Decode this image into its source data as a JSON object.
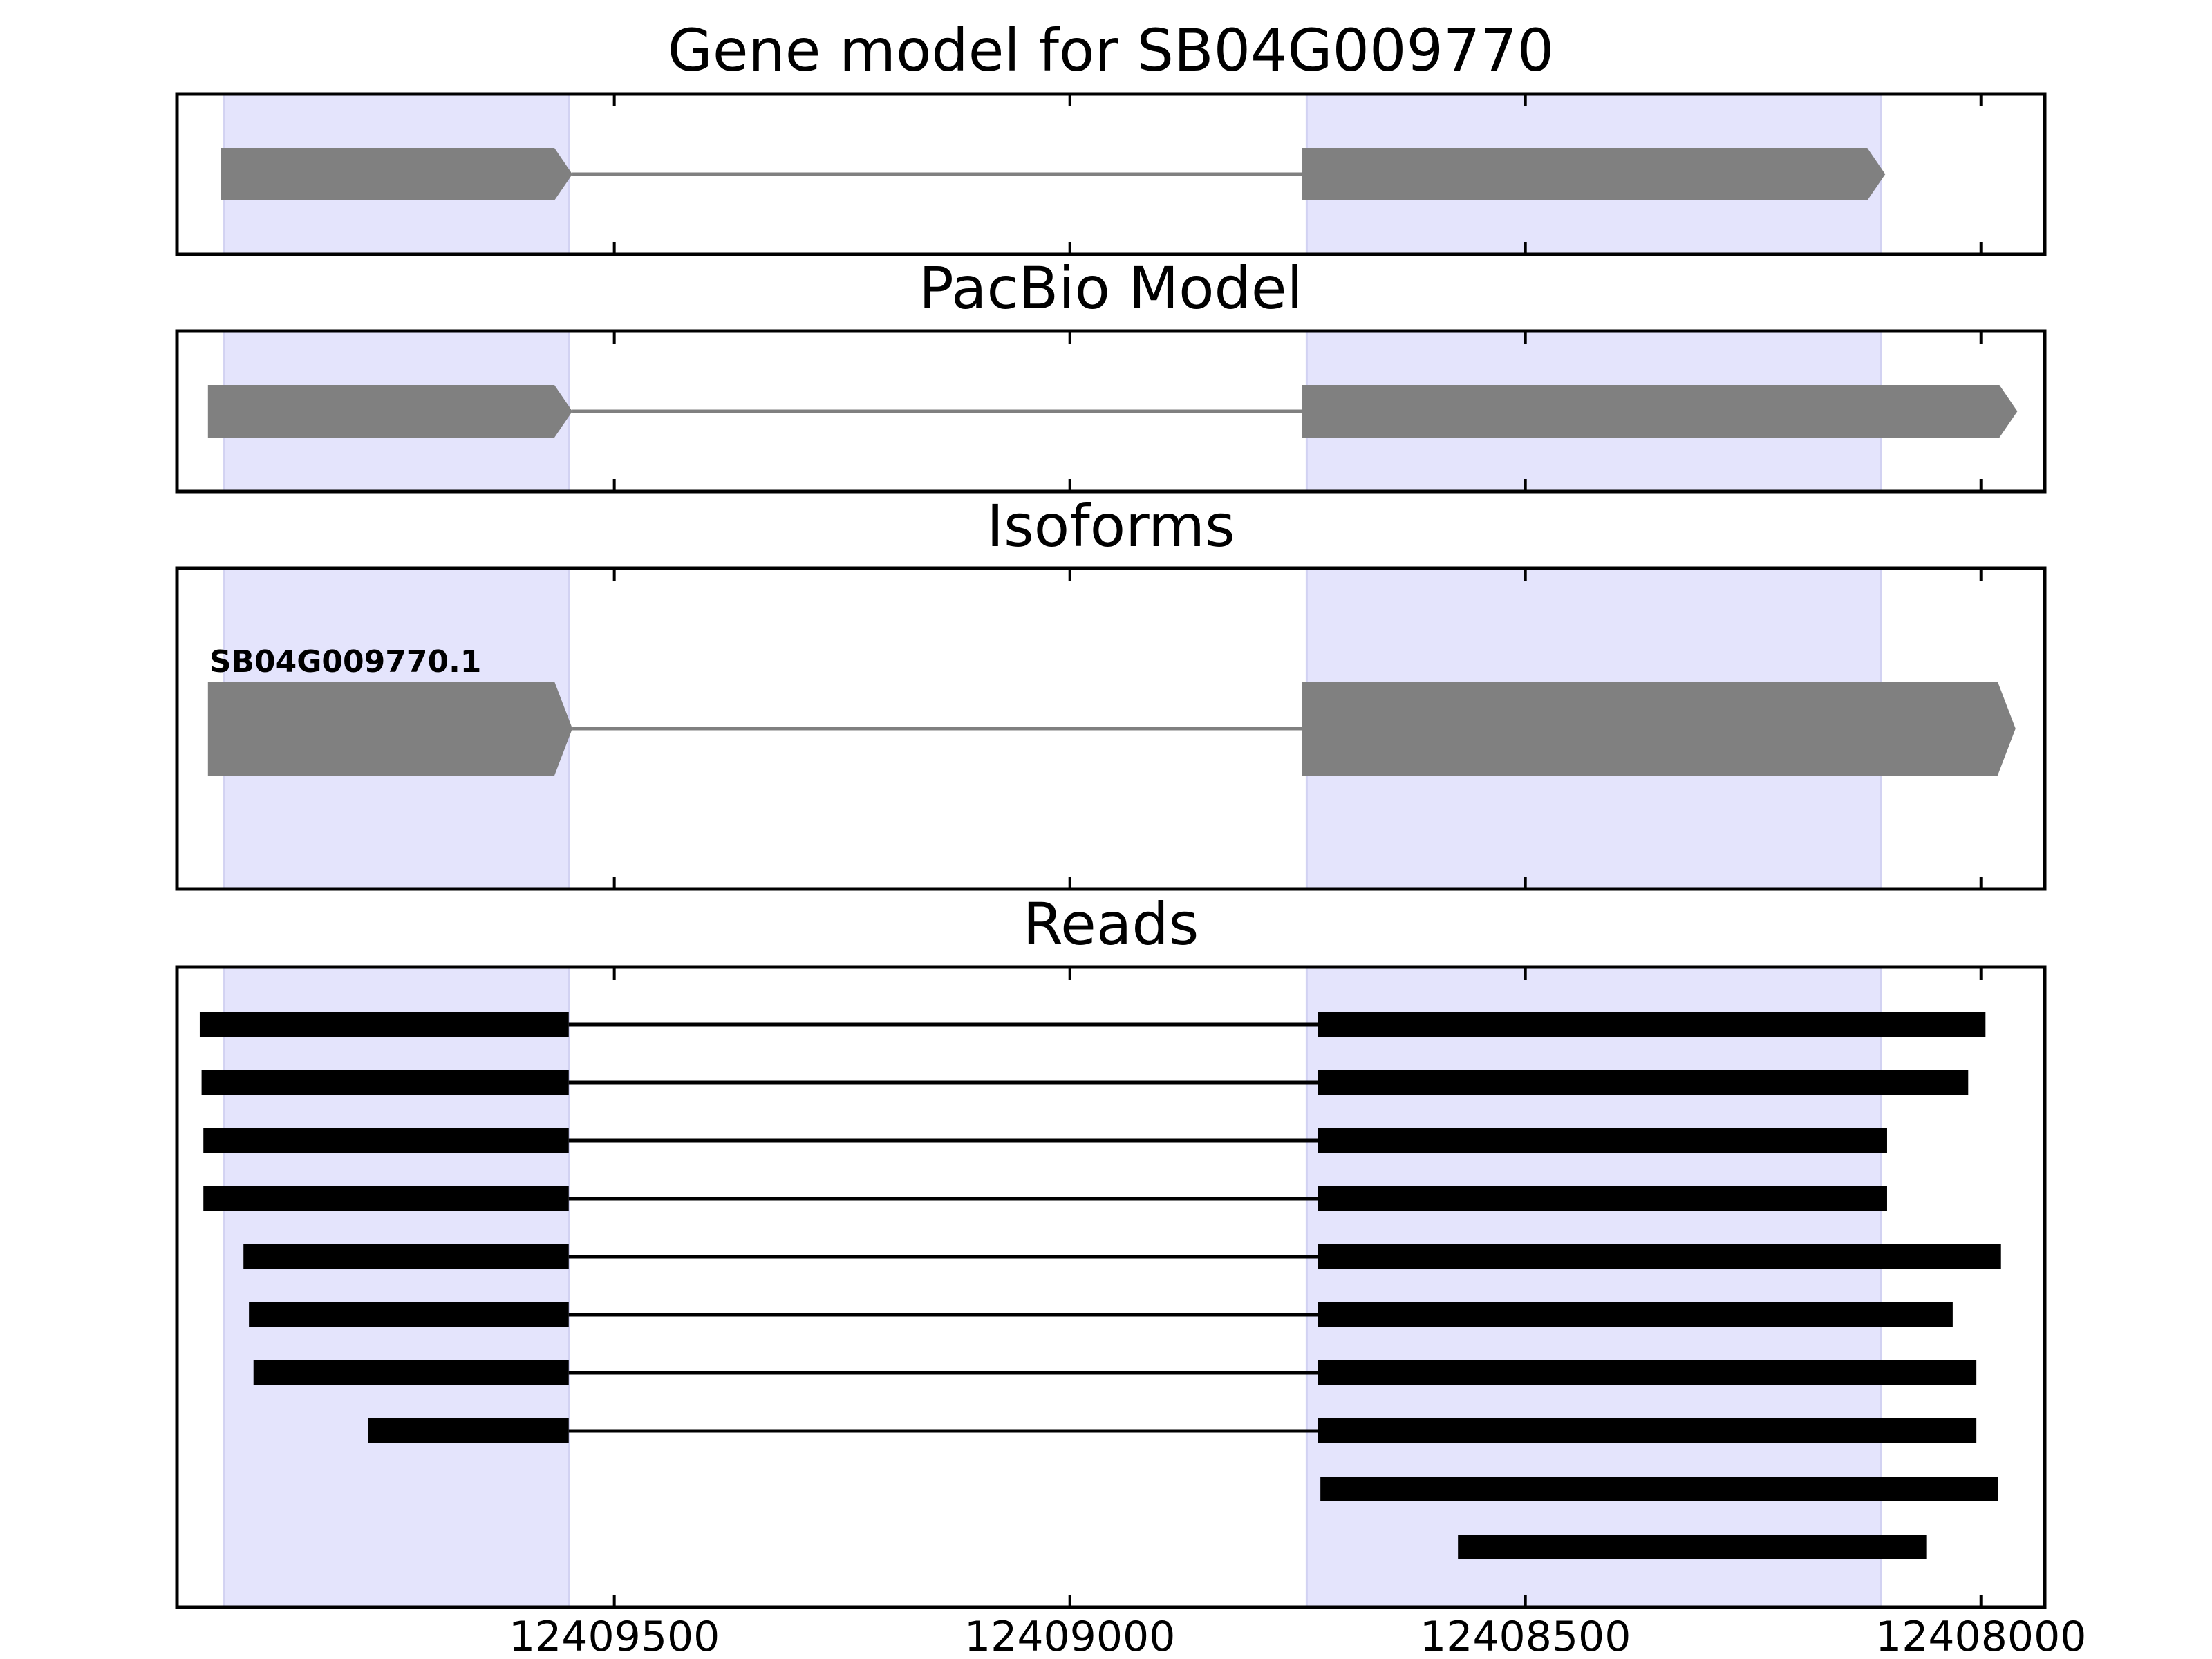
{
  "chart_data": {
    "type": "gene-structure",
    "x_axis": {
      "range": [
        12409980,
        12407930
      ],
      "reversed": true,
      "ticks": [
        12409500,
        12409000,
        12408500,
        12408000
      ],
      "tick_labels": [
        "12409500",
        "12409000",
        "12408500",
        "12408000"
      ]
    },
    "highlight_regions": [
      [
        12409928,
        12409550
      ],
      [
        12408740,
        12408110
      ]
    ],
    "colors": {
      "exon": "#808080",
      "intron": "#808080",
      "read": "#000000",
      "highlight": "#e4e4fc",
      "frame": "#000000"
    },
    "panels": [
      {
        "title": "Gene model for SB04G009770",
        "strand": "-",
        "models": [
          {
            "label": "",
            "exons": [
              [
                12409932,
                12409546
              ],
              [
                12408745,
                12408105
              ]
            ]
          }
        ]
      },
      {
        "title": "PacBio Model",
        "strand": "-",
        "models": [
          {
            "label": "",
            "exons": [
              [
                12409946,
                12409546
              ],
              [
                12408745,
                12407960
              ]
            ]
          }
        ]
      },
      {
        "title": "Isoforms",
        "strand": "-",
        "models": [
          {
            "label": "SB04G009770.1",
            "exons": [
              [
                12409946,
                12409546
              ],
              [
                12408745,
                12407962
              ]
            ]
          }
        ]
      },
      {
        "title": "Reads",
        "reads": [
          [
            [
              12409955,
              12409550
            ],
            [
              12408728,
              12407995
            ]
          ],
          [
            [
              12409953,
              12409550
            ],
            [
              12408728,
              12408014
            ]
          ],
          [
            [
              12409951,
              12409550
            ],
            [
              12408728,
              12408103
            ]
          ],
          [
            [
              12409951,
              12409550
            ],
            [
              12408728,
              12408103
            ]
          ],
          [
            [
              12409907,
              12409550
            ],
            [
              12408728,
              12407978
            ]
          ],
          [
            [
              12409901,
              12409550
            ],
            [
              12408728,
              12408031
            ]
          ],
          [
            [
              12409896,
              12409550
            ],
            [
              12408728,
              12408005
            ]
          ],
          [
            [
              12409770,
              12409550
            ],
            [
              12408728,
              12408005
            ]
          ],
          [
            [
              12408725,
              12407981
            ]
          ],
          [
            [
              12408574,
              12408060
            ]
          ]
        ]
      }
    ]
  }
}
